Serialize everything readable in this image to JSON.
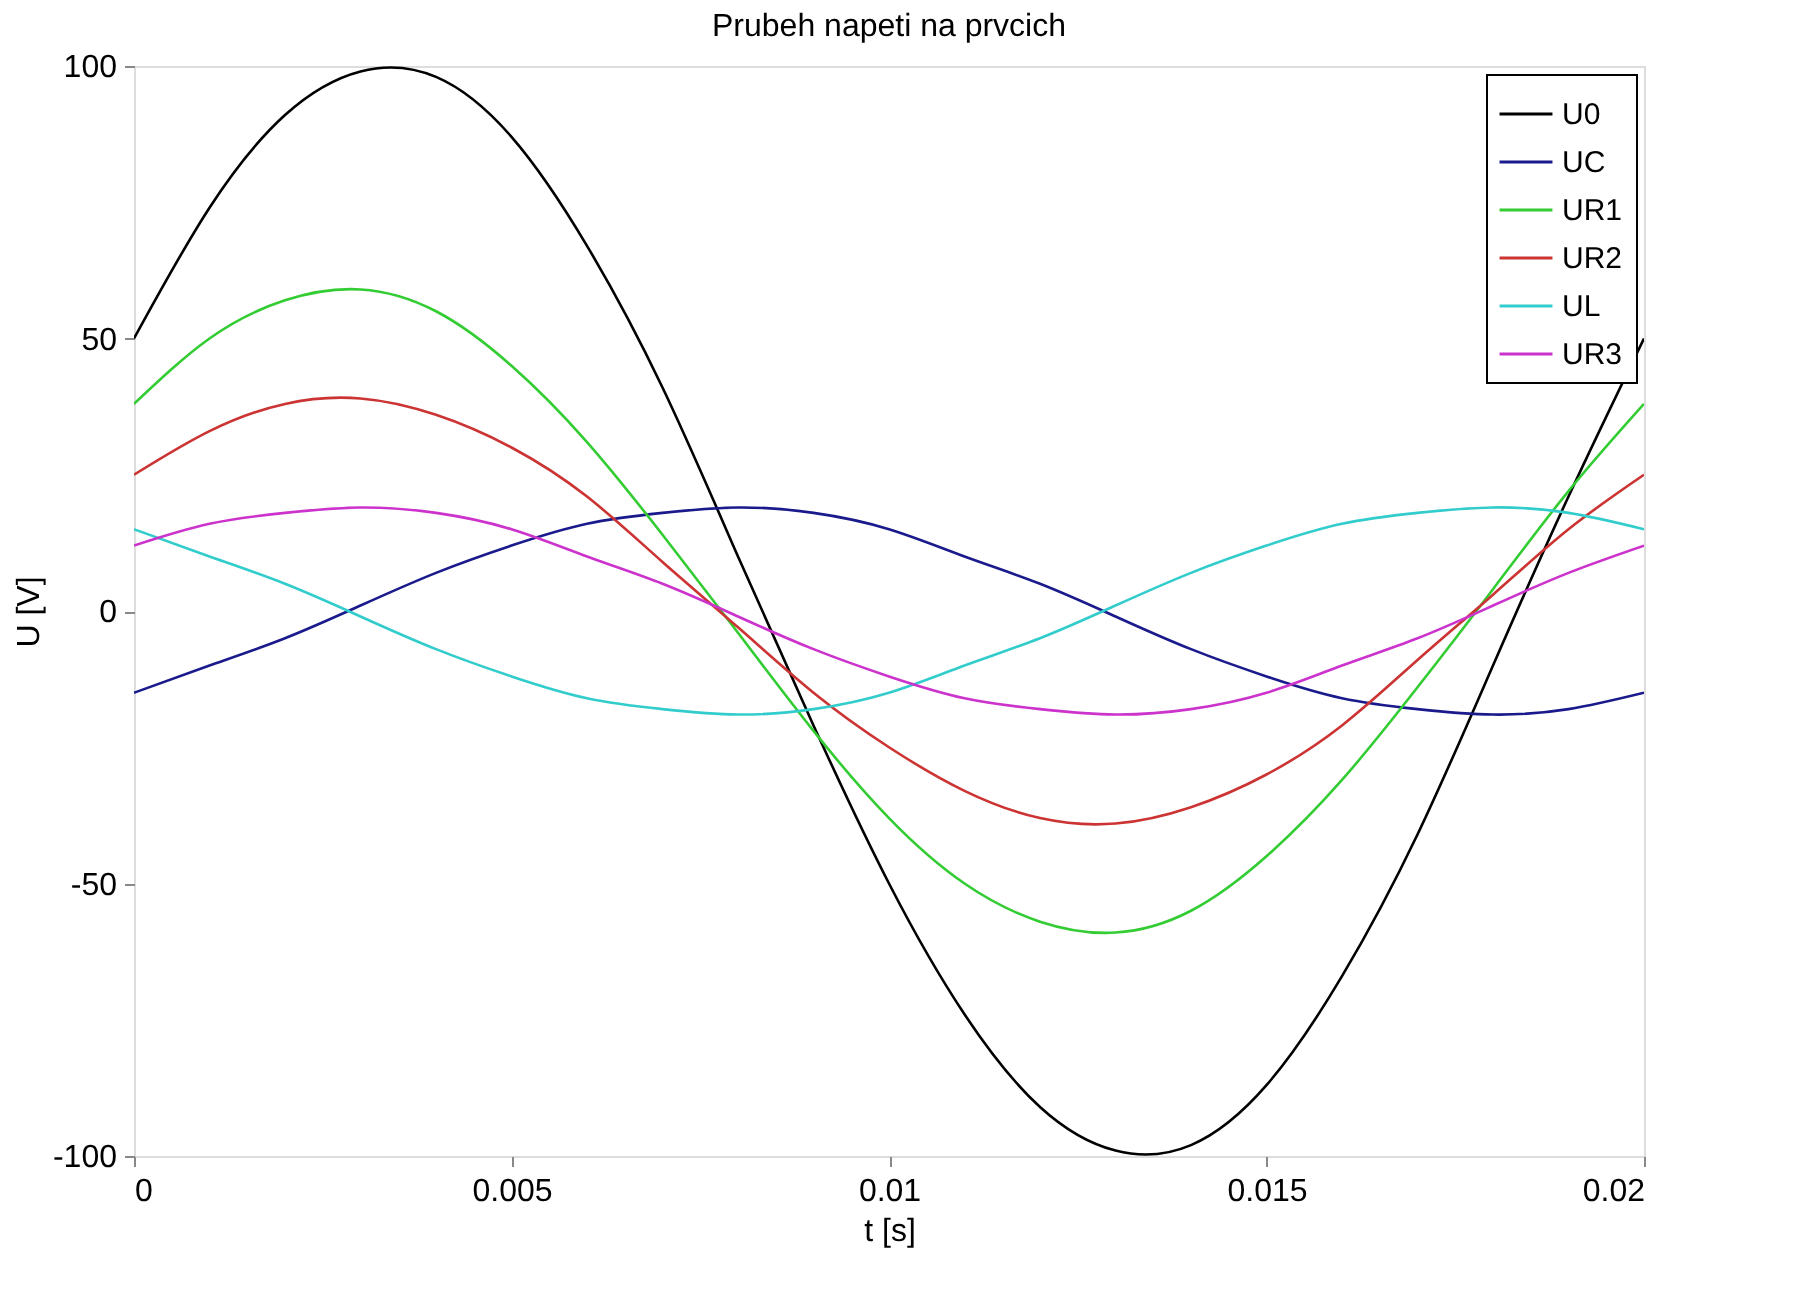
{
  "chart_data": {
    "type": "line",
    "title": "Prubeh napeti na prvcich",
    "xlabel": "t [s]",
    "ylabel": "U [V]",
    "x": [
      0,
      0.001,
      0.002,
      0.003,
      0.004,
      0.005,
      0.006,
      0.007,
      0.008,
      0.009,
      0.01,
      0.011,
      0.012,
      0.013,
      0.014,
      0.015,
      0.016,
      0.017,
      0.018,
      0.019,
      0.02
    ],
    "series": [
      {
        "name": "U0",
        "color": "#000000",
        "values": [
          50,
          74,
          91,
          99,
          98,
          87,
          67,
          41,
          10,
          -21,
          -50,
          -74,
          -91,
          -99,
          -98,
          -87,
          -67,
          -41,
          -10,
          21,
          50
        ]
      },
      {
        "name": "UC",
        "color": "#1a1a8c",
        "values": [
          -15,
          -10,
          -5,
          1,
          7,
          12,
          16,
          18,
          19,
          18,
          15,
          10,
          5,
          -1,
          -7,
          -12,
          -16,
          -18,
          -19,
          -18,
          -15
        ]
      },
      {
        "name": "UR1",
        "color": "#33cc33",
        "values": [
          38,
          50,
          57,
          59,
          55,
          45,
          31,
          14,
          -4,
          -22,
          -38,
          -50,
          -57,
          -59,
          -55,
          -45,
          -31,
          -14,
          4,
          22,
          38
        ]
      },
      {
        "name": "UR2",
        "color": "#cc3333",
        "values": [
          25,
          33,
          38,
          39,
          36,
          30,
          21,
          9,
          -3,
          -15,
          -25,
          -33,
          -38,
          -39,
          -36,
          -30,
          -21,
          -9,
          3,
          15,
          25
        ]
      },
      {
        "name": "UL",
        "color": "#33cccc",
        "values": [
          15,
          10,
          5,
          -1,
          -7,
          -12,
          -16,
          -18,
          -19,
          -18,
          -15,
          -10,
          -5,
          1,
          7,
          12,
          16,
          18,
          19,
          18,
          15
        ]
      },
      {
        "name": "UR3",
        "color": "#cc33cc",
        "values": [
          12,
          16,
          18,
          19,
          18,
          15,
          10,
          5,
          -1,
          -7,
          -12,
          -16,
          -18,
          -19,
          -18,
          -15,
          -10,
          -5,
          1,
          7,
          12
        ]
      }
    ],
    "xlim": [
      0,
      0.02
    ],
    "xticks": [
      0,
      0.005,
      0.01,
      0.015,
      0.02
    ],
    "ylim": [
      -100,
      100
    ],
    "yticks": [
      -100,
      -50,
      0,
      50,
      100
    ],
    "grid": false,
    "legend": "top right",
    "marker": "none",
    "line_style": "solid"
  }
}
